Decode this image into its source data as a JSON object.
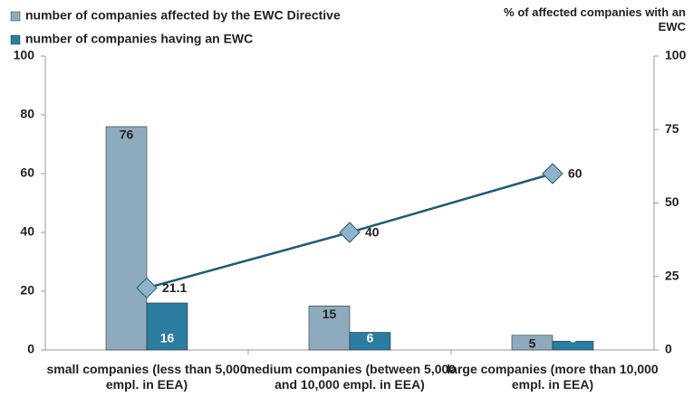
{
  "chart_data": {
    "type": "bar-line",
    "categories": [
      "small companies (less than 5,000 empl. in EEA)",
      "medium companies (between 5,000 and 10,000 empl. in EEA)",
      "large companies (more than 10,000 empl. in EEA)"
    ],
    "series": [
      {
        "name": "number of companies affected by the EWC Directive",
        "type": "bar",
        "color": "#8eabbd",
        "values": [
          76,
          15,
          5
        ]
      },
      {
        "name": "number of companies having an EWC",
        "type": "bar",
        "color": "#2a7da1",
        "values": [
          16,
          6,
          3
        ]
      },
      {
        "type": "line",
        "axis": "y2",
        "color": "#1e5a78",
        "marker_color": "#8fb3c8",
        "values": [
          21.1,
          40,
          60
        ]
      }
    ],
    "y2label": "% of affected companies with an EWC",
    "ylim": [
      0,
      100
    ],
    "yticks": [
      0,
      20,
      40,
      60,
      80,
      100
    ],
    "y2lim": [
      0,
      100
    ],
    "y2ticks": [
      0,
      25,
      50,
      75,
      100
    ],
    "grid": false
  }
}
